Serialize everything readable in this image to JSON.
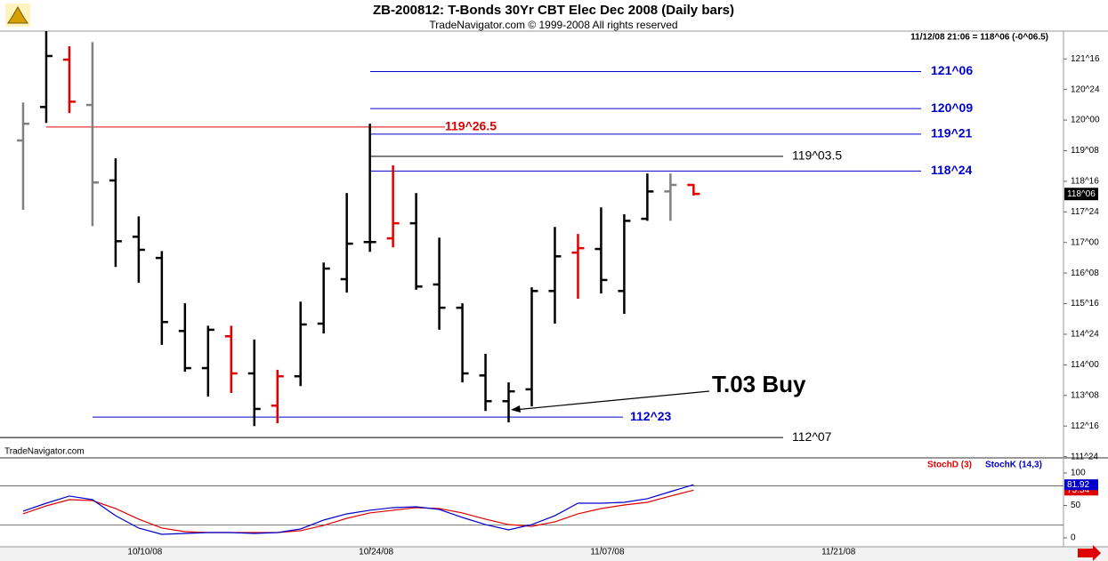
{
  "chart_data": [
    {
      "type": "ohlc",
      "title": "ZB-200812:  T-Bonds 30Yr CBT Elec Dec 2008  (Daily bars)",
      "subtitle": "TradeNavigator.com © 1999-2008 All rights reserved",
      "status": "11/12/08 21:06 = 118^06 (-0^06.5)",
      "watermark": "TradeNavigator.com",
      "annotation": "T.03 Buy",
      "xlim": [
        -1,
        45
      ],
      "xticks": [
        {
          "value": 5,
          "label": "10/10/08"
        },
        {
          "value": 15,
          "label": "10/24/08"
        },
        {
          "value": 25,
          "label": "11/07/08"
        },
        {
          "value": 35,
          "label": "11/21/08"
        }
      ],
      "ylim": [
        111.72,
        122.18
      ],
      "yticks": [
        {
          "value": 121.5,
          "label": "121^16"
        },
        {
          "value": 120.75,
          "label": "120^24"
        },
        {
          "value": 120,
          "label": "120^00"
        },
        {
          "value": 119.25,
          "label": "119^08"
        },
        {
          "value": 118.5,
          "label": "118^16"
        },
        {
          "value": 117.75,
          "label": "117^24"
        },
        {
          "value": 117,
          "label": "117^00"
        },
        {
          "value": 116.25,
          "label": "116^08"
        },
        {
          "value": 115.5,
          "label": "115^16"
        },
        {
          "value": 114.75,
          "label": "114^24"
        },
        {
          "value": 114,
          "label": "114^00"
        },
        {
          "value": 113.25,
          "label": "113^08"
        },
        {
          "value": 112.5,
          "label": "112^16"
        },
        {
          "value": 111.75,
          "label": "111^24"
        }
      ],
      "last_price": {
        "value": 118.1875,
        "label": "118^06"
      },
      "open": [
        119.5,
        120.32,
        121.48,
        120.37,
        118.52,
        117.14,
        116.62,
        114.83,
        113.92,
        114.7,
        113.79,
        113.0,
        113.72,
        115.01,
        116.1,
        117.01,
        117.1,
        117.47,
        115.97,
        115.4,
        113.74,
        113.11,
        113.4,
        115.81,
        116.75,
        116.84,
        115.81,
        117.58,
        118.25,
        118.41
      ],
      "high": [
        120.43,
        122.18,
        121.81,
        121.91,
        119.06,
        117.64,
        116.79,
        115.51,
        114.96,
        114.96,
        114.62,
        113.88,
        115.55,
        116.51,
        118.21,
        119.91,
        118.89,
        118.21,
        117.12,
        115.51,
        114.27,
        113.57,
        115.9,
        117.38,
        117.21,
        117.86,
        117.69,
        118.69,
        118.69,
        118.43
      ],
      "low": [
        117.8,
        119.93,
        120.17,
        117.4,
        116.4,
        116.01,
        114.49,
        113.83,
        113.22,
        113.31,
        112.5,
        112.57,
        113.48,
        114.77,
        115.77,
        116.77,
        116.88,
        115.84,
        114.86,
        113.57,
        112.87,
        112.59,
        112.98,
        115.01,
        115.62,
        115.75,
        115.25,
        117.53,
        117.53,
        118.15
      ],
      "close": [
        119.91,
        121.57,
        120.45,
        118.47,
        117.03,
        116.82,
        115.05,
        113.92,
        114.86,
        113.79,
        112.92,
        113.72,
        114.99,
        116.36,
        116.97,
        117.01,
        117.47,
        115.92,
        115.4,
        113.79,
        113.11,
        113.35,
        115.81,
        116.66,
        116.86,
        116.08,
        117.53,
        118.25,
        118.41,
        118.19
      ],
      "colors": [
        "#808080",
        "#000000",
        "#e00000",
        "#808080",
        "#000000",
        "#000000",
        "#000000",
        "#000000",
        "#000000",
        "#e00000",
        "#000000",
        "#e00000",
        "#000000",
        "#000000",
        "#000000",
        "#000000",
        "#e00000",
        "#000000",
        "#000000",
        "#000000",
        "#000000",
        "#000000",
        "#000000",
        "#000000",
        "#e00000",
        "#000000",
        "#000000",
        "#000000",
        "#808080",
        "#e00000"
      ],
      "levels": [
        {
          "value": 121.1875,
          "label": "121^06",
          "color": "#0000cc"
        },
        {
          "value": 120.28125,
          "label": "120^09",
          "color": "#0000cc"
        },
        {
          "value": 119.828125,
          "label": "119^26.5",
          "color": "#e00000"
        },
        {
          "value": 119.65625,
          "label": "119^21",
          "color": "#0000cc"
        },
        {
          "value": 119.109375,
          "label": "119^03.5",
          "color": "#000000"
        },
        {
          "value": 118.75,
          "label": "118^24",
          "color": "#0000cc"
        },
        {
          "value": 112.71875,
          "label": "112^23",
          "color": "#0000cc"
        },
        {
          "value": 112.21875,
          "label": "112^07",
          "color": "#000000"
        }
      ]
    },
    {
      "type": "line",
      "ylim": [
        -13.7,
        120.5
      ],
      "yticks": [
        0,
        50,
        100
      ],
      "ref_lines": [
        20,
        80
      ],
      "series": [
        {
          "name": "StochD (3)",
          "color": "#e00000",
          "values": [
            37.0,
            49.3,
            58.9,
            57.5,
            45.2,
            28.8,
            15.1,
            9.6,
            8.2,
            8.2,
            8.2,
            8.2,
            11.0,
            19.2,
            30.1,
            38.4,
            42.5,
            46.6,
            45.2,
            38.4,
            28.8,
            20.5,
            17.8,
            24.7,
            37.0,
            45.2,
            50.7,
            54.8,
            64.4,
            73.54
          ]
        },
        {
          "name": "StochK (14,3)",
          "color": "#0000cc",
          "values": [
            41.1,
            53.4,
            64.4,
            58.9,
            34.2,
            15.1,
            5.5,
            6.8,
            8.2,
            8.2,
            6.8,
            8.2,
            13.7,
            27.4,
            37.0,
            42.5,
            46.6,
            47.9,
            43.8,
            31.5,
            20.5,
            12.3,
            20.5,
            34.2,
            53.4,
            53.4,
            54.8,
            60.3,
            71.2,
            81.92
          ]
        }
      ]
    }
  ]
}
